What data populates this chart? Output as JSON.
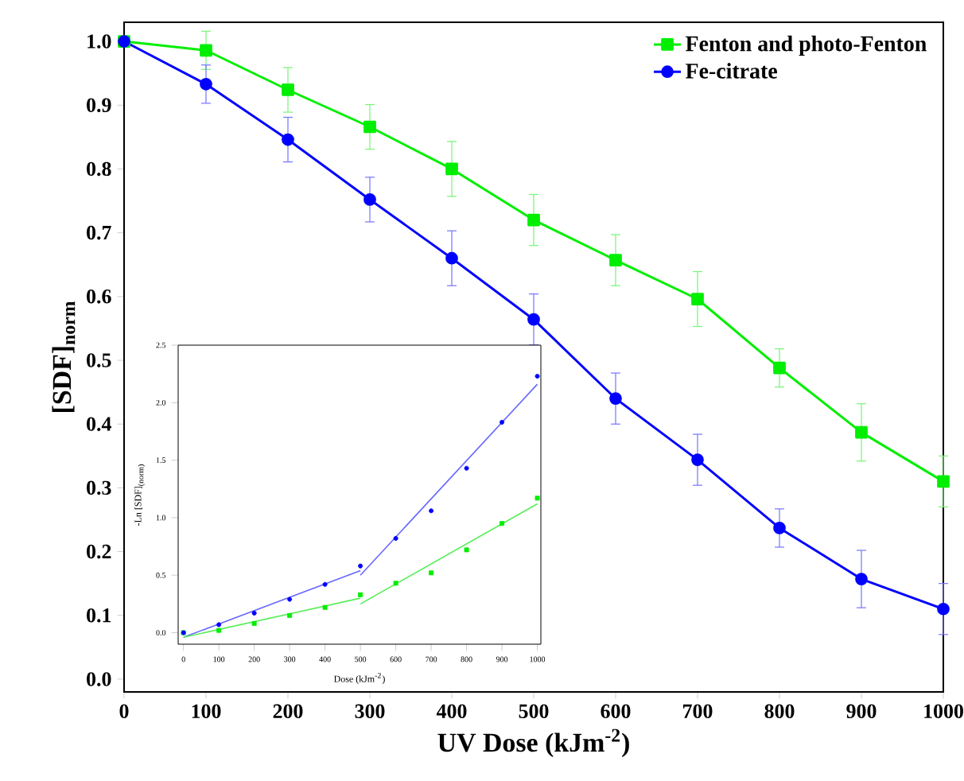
{
  "chart_data": [
    {
      "type": "line",
      "xlabel": "UV Dose (kJm$^{-2}$)",
      "ylabel": "[SDF]$_{norm}$",
      "xlim": [
        0,
        1000
      ],
      "ylim": [
        -0.02,
        1.03
      ],
      "xticks": [
        0,
        100,
        200,
        300,
        400,
        500,
        600,
        700,
        800,
        900,
        1000
      ],
      "yticks": [
        {
          "value": 0,
          "label": "0.0"
        },
        {
          "value": 0.1,
          "label": "0.1"
        },
        {
          "value": 0.2,
          "label": "0.2"
        },
        {
          "value": 0.3,
          "label": "0.3"
        },
        {
          "value": 0.4,
          "label": "0.4"
        },
        {
          "value": 0.5,
          "label": "0.5"
        },
        {
          "value": 0.6,
          "label": "0.6"
        },
        {
          "value": 0.7,
          "label": "0.7"
        },
        {
          "value": 0.8,
          "label": "0.8"
        },
        {
          "value": 0.9,
          "label": "0.9"
        },
        {
          "value": 1,
          "label": "1.0"
        }
      ],
      "x": [
        0,
        100,
        200,
        300,
        400,
        500,
        600,
        700,
        800,
        900,
        1000
      ],
      "legend": "top right",
      "line_style": "solid",
      "series": [
        {
          "name": "Fenton and photo-Fenton",
          "color": "#00ee00",
          "marker": "square",
          "values": [
            1.0,
            0.986,
            0.924,
            0.866,
            0.8,
            0.72,
            0.657,
            0.596,
            0.488,
            0.387,
            0.31
          ],
          "errors": [
            null,
            0.03,
            0.035,
            0.035,
            0.043,
            0.04,
            0.04,
            0.043,
            0.03,
            0.045,
            0.04
          ]
        },
        {
          "name": "Fe-citrate",
          "color": "#0000ff",
          "marker": "circle",
          "values": [
            1.0,
            0.933,
            0.846,
            0.752,
            0.66,
            0.564,
            0.44,
            0.344,
            0.237,
            0.157,
            0.11
          ],
          "errors": [
            null,
            0.03,
            0.035,
            0.035,
            0.043,
            0.04,
            0.04,
            0.04,
            0.03,
            0.045,
            0.04
          ]
        }
      ]
    },
    {
      "type": "scatter",
      "xlabel": "Dose (kJm$^{-2}$)",
      "ylabel": "-Ln [SDF]$_{(norm)}$",
      "xlim": [
        -15,
        1010
      ],
      "ylim": [
        -0.1,
        2.5
      ],
      "xticks": [
        0,
        100,
        200,
        300,
        400,
        500,
        600,
        700,
        800,
        900,
        1000
      ],
      "yticks": [
        {
          "value": 0,
          "label": "0.0"
        },
        {
          "value": 0.5,
          "label": "0.5"
        },
        {
          "value": 1,
          "label": "1.0"
        },
        {
          "value": 1.5,
          "label": "1.5"
        },
        {
          "value": 2,
          "label": "2.0"
        },
        {
          "value": 2.5,
          "label": "2.5"
        }
      ],
      "x": [
        0,
        100,
        200,
        300,
        400,
        500,
        600,
        700,
        800,
        900,
        1000
      ],
      "series": [
        {
          "color": "#00ee00",
          "marker": "square",
          "values": [
            0,
            0.02,
            0.08,
            0.15,
            0.22,
            0.33,
            0.43,
            0.52,
            0.72,
            0.95,
            1.17
          ]
        },
        {
          "color": "#0000ff",
          "marker": "circle",
          "values": [
            0,
            0.07,
            0.17,
            0.29,
            0.42,
            0.58,
            0.82,
            1.06,
            1.43,
            1.83,
            2.23
          ]
        },
        {
          "type": "line",
          "color": "#6666ff",
          "marker": "none",
          "x": [
            0,
            500
          ],
          "values": [
            -0.04,
            0.54
          ]
        },
        {
          "type": "line",
          "color": "#6666ff",
          "marker": "none",
          "x": [
            500,
            1000
          ],
          "values": [
            0.5,
            2.16
          ]
        },
        {
          "type": "line",
          "color": "#55ee55",
          "marker": "none",
          "x": [
            0,
            500
          ],
          "values": [
            -0.04,
            0.3
          ]
        },
        {
          "type": "line",
          "color": "#55ee55",
          "marker": "none",
          "x": [
            500,
            1000
          ],
          "values": [
            0.25,
            1.12
          ]
        }
      ]
    }
  ]
}
